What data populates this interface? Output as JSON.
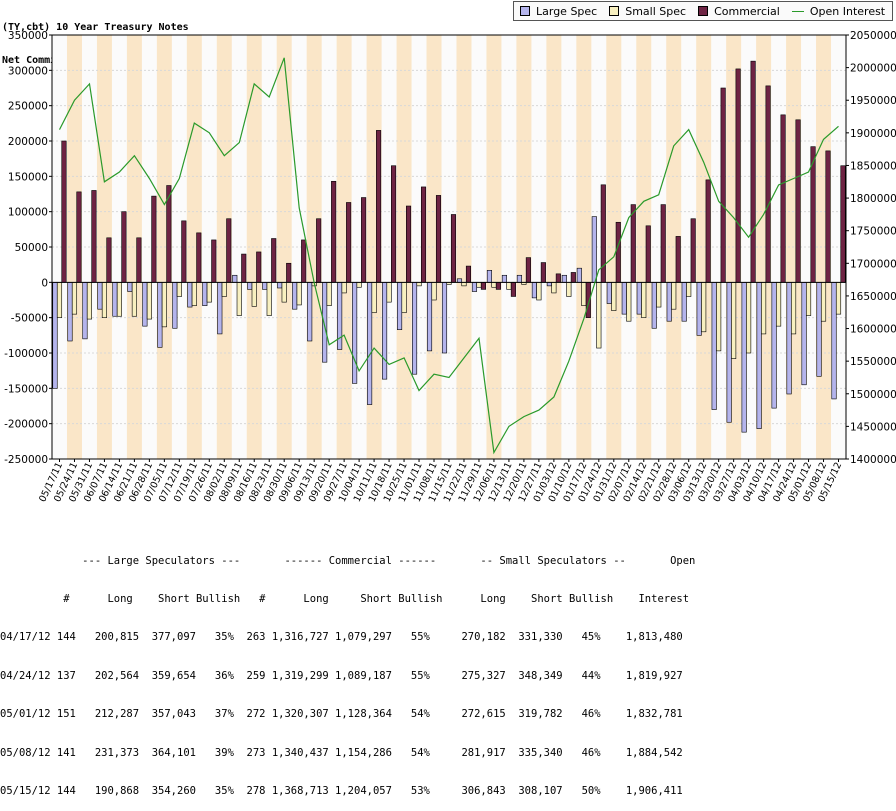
{
  "title_lines": [
    "(TY,cbt) 10 Year Treasury Notes",
    "Net Commitments of Futures Traders"
  ],
  "colors": {
    "large_spec": "#b4b4ec",
    "small_spec": "#f8f0c0",
    "commercial": "#6e2343",
    "open_interest": "#2a9a2a",
    "band": "#fae6c8",
    "plot_bg": "#fbfbfb"
  },
  "legend": [
    {
      "label": "Large Spec",
      "kind": "box",
      "color": "#b4b4ec"
    },
    {
      "label": "Small Spec",
      "kind": "box",
      "color": "#f8f0c0"
    },
    {
      "label": "Commercial",
      "kind": "box",
      "color": "#6e2343"
    },
    {
      "label": "Open Interest",
      "kind": "line",
      "color": "#2a9a2a"
    }
  ],
  "chart_data": {
    "type": "bar",
    "categories": [
      "05/17/11",
      "05/24/11",
      "05/31/11",
      "06/07/11",
      "06/14/11",
      "06/21/11",
      "06/28/11",
      "07/05/11",
      "07/12/11",
      "07/19/11",
      "07/26/11",
      "08/02/11",
      "08/09/11",
      "08/16/11",
      "08/23/11",
      "08/30/11",
      "09/06/11",
      "09/13/11",
      "09/20/11",
      "09/27/11",
      "10/04/11",
      "10/11/11",
      "10/18/11",
      "10/25/11",
      "11/01/11",
      "11/08/11",
      "11/15/11",
      "11/22/11",
      "11/29/11",
      "12/06/11",
      "12/13/11",
      "12/20/11",
      "12/27/11",
      "01/03/12",
      "01/10/12",
      "01/17/12",
      "01/24/12",
      "01/31/12",
      "02/07/12",
      "02/14/12",
      "02/21/12",
      "02/28/12",
      "03/06/12",
      "03/13/12",
      "03/20/12",
      "03/27/12",
      "04/03/12",
      "04/10/12",
      "04/17/12",
      "04/24/12",
      "05/01/12",
      "05/08/12",
      "05/15/12"
    ],
    "left_axis": {
      "min": -250000,
      "max": 350000,
      "ticks": [
        "350000",
        "300000",
        "250000",
        "200000",
        "150000",
        "100000",
        "50000",
        "0",
        "-50000",
        "-100000",
        "-150000",
        "-200000",
        "-250000"
      ]
    },
    "right_axis": {
      "min": 1400000,
      "max": 2050000,
      "ticks": [
        "2050000",
        "2000000",
        "1950000",
        "1900000",
        "1850000",
        "1800000",
        "1750000",
        "1700000",
        "1650000",
        "1600000",
        "1550000",
        "1500000",
        "1450000",
        "1400000"
      ]
    },
    "grid": true,
    "legend_position": "top-right",
    "series": [
      {
        "name": "Large Spec",
        "axis": "left",
        "values": [
          -150000,
          -83000,
          -80000,
          -38000,
          -48000,
          -13000,
          -62000,
          -92000,
          -65000,
          -35000,
          -33000,
          -73000,
          10000,
          -10000,
          -10000,
          -8000,
          -38000,
          -83000,
          -113000,
          -95000,
          -143000,
          -173000,
          -137000,
          -67000,
          -130000,
          -97000,
          -100000,
          5000,
          -13000,
          17000,
          10000,
          10000,
          -22000,
          -5000,
          10000,
          20000,
          93000,
          -30000,
          -45000,
          -45000,
          -65000,
          -55000,
          -55000,
          -75000,
          -180000,
          -198000,
          -212000,
          -207000,
          -178000,
          -158000,
          -145000,
          -133000,
          -165000
        ]
      },
      {
        "name": "Small Spec",
        "axis": "left",
        "values": [
          -50000,
          -45000,
          -52000,
          -50000,
          -48000,
          -48000,
          -52000,
          -63000,
          -20000,
          -33000,
          -28000,
          -20000,
          -47000,
          -34000,
          -47000,
          -28000,
          -32000,
          -5000,
          -33000,
          -15000,
          -7000,
          -43000,
          -28000,
          -43000,
          -5000,
          -25000,
          -3000,
          -5000,
          -7000,
          -7000,
          -10000,
          -3000,
          -25000,
          -15000,
          -20000,
          -33000,
          -93000,
          -40000,
          -55000,
          -50000,
          -35000,
          -38000,
          -20000,
          -70000,
          -97000,
          -108000,
          -100000,
          -73000,
          -62000,
          -73000,
          -47000,
          -55000,
          -45000
        ]
      },
      {
        "name": "Commercial",
        "axis": "left",
        "values": [
          200000,
          128000,
          130000,
          63000,
          100000,
          63000,
          122000,
          137000,
          87000,
          70000,
          60000,
          90000,
          40000,
          43000,
          62000,
          27000,
          60000,
          90000,
          143000,
          113000,
          120000,
          215000,
          165000,
          108000,
          135000,
          123000,
          96000,
          23000,
          -10000,
          -10000,
          -20000,
          35000,
          28000,
          12000,
          14000,
          -50000,
          138000,
          85000,
          110000,
          80000,
          110000,
          65000,
          90000,
          145000,
          275000,
          302000,
          313000,
          278000,
          237000,
          230000,
          192000,
          186000,
          165000
        ]
      },
      {
        "name": "Open Interest",
        "axis": "right",
        "kind": "line",
        "values": [
          1905000,
          1950000,
          1975000,
          1825000,
          1840000,
          1865000,
          1830000,
          1790000,
          1830000,
          1915000,
          1900000,
          1865000,
          1885000,
          1975000,
          1955000,
          2015000,
          1785000,
          1670000,
          1575000,
          1590000,
          1535000,
          1570000,
          1545000,
          1555000,
          1505000,
          1530000,
          1525000,
          1555000,
          1585000,
          1410000,
          1450000,
          1465000,
          1475000,
          1495000,
          1550000,
          1615000,
          1690000,
          1710000,
          1770000,
          1795000,
          1805000,
          1880000,
          1905000,
          1855000,
          1795000,
          1770000,
          1740000,
          1775000,
          1820000,
          1830000,
          1840000,
          1890000,
          1910000
        ]
      }
    ]
  },
  "summary": {
    "header_lines": [
      "             --- Large Speculators ---       ------ Commercial ------       -- Small Speculators --       Open",
      "          #      Long    Short Bullish   #      Long     Short Bullish      Long    Short Bullish    Interest"
    ],
    "rows": [
      "04/17/12 144   200,815  377,097   35%  263 1,316,727 1,079,297   55%     270,182  331,330   45%    1,813,480",
      "04/24/12 137   202,564  359,654   36%  259 1,319,299 1,089,187   55%     275,327  348,349   44%    1,819,927",
      "05/01/12 151   212,287  357,043   37%  272 1,320,307 1,128,364   54%     272,615  319,782   46%    1,832,781",
      "05/08/12 141   231,373  364,101   39%  273 1,340,437 1,154,286   54%     281,917  335,340   46%    1,884,542",
      "05/15/12 144   190,868  354,260   35%  278 1,368,713 1,204,057   53%     306,843  308,107   50%    1,906,411"
    ]
  }
}
